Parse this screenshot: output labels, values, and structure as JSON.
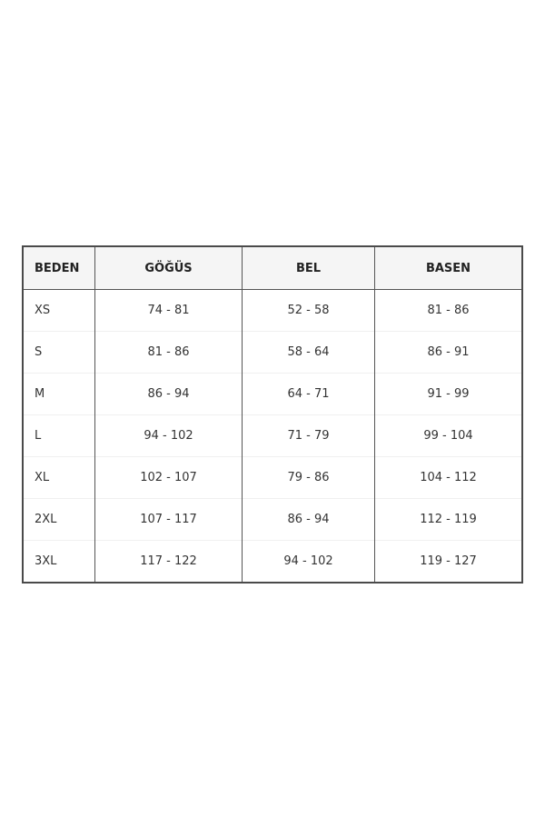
{
  "table": {
    "headers": [
      "BEDEN",
      "GÖĞÜS",
      "BEL",
      "BASEN"
    ],
    "rows": [
      [
        "XS",
        "74 - 81",
        "52 - 58",
        "81 - 86"
      ],
      [
        "S",
        "81 - 86",
        "58 - 64",
        "86 - 91"
      ],
      [
        "M",
        "86 - 94",
        "64 - 71",
        "91 - 99"
      ],
      [
        "L",
        "94 - 102",
        "71 - 79",
        "99 - 104"
      ],
      [
        "XL",
        "102 - 107",
        "79 - 86",
        "104 - 112"
      ],
      [
        "2XL",
        "107 - 117",
        "86 - 94",
        "112 - 119"
      ],
      [
        "3XL",
        "117 - 122",
        "94 - 102",
        "119 - 127"
      ]
    ]
  }
}
